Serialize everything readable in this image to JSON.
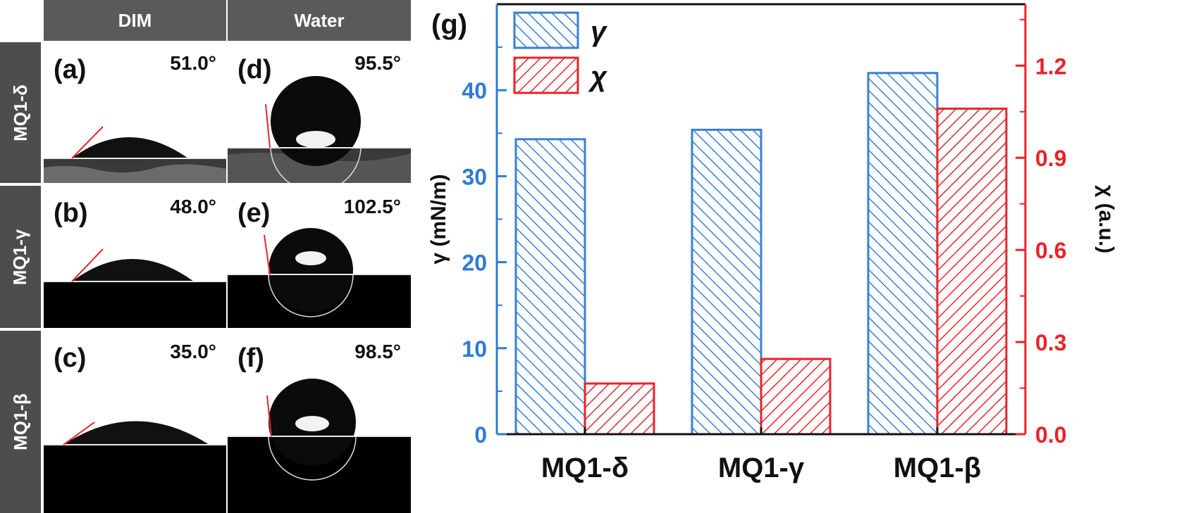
{
  "headers": {
    "col1": "DIM",
    "col2": "Water"
  },
  "row_labels": [
    "MQ1-δ",
    "MQ1-γ",
    "MQ1-β"
  ],
  "panels": [
    {
      "label": "(a)",
      "angle": "51.0°"
    },
    {
      "label": "(b)",
      "angle": "48.0°"
    },
    {
      "label": "(c)",
      "angle": "35.0°"
    },
    {
      "label": "(d)",
      "angle": "95.5°"
    },
    {
      "label": "(e)",
      "angle": "102.5°"
    },
    {
      "label": "(f)",
      "angle": "98.5°"
    }
  ],
  "chart_data": {
    "type": "bar",
    "panel_label": "(g)",
    "categories": [
      "MQ1-δ",
      "MQ1-γ",
      "MQ1-β"
    ],
    "series": [
      {
        "name": "γ",
        "axis": "left",
        "values": [
          34.3,
          35.4,
          42.0
        ]
      },
      {
        "name": "χ",
        "axis": "right",
        "values": [
          0.165,
          0.245,
          1.06
        ]
      }
    ],
    "ylabel_left": "γ (mN/m)",
    "ylabel_right": "χ (a.u.)",
    "ylim_left": [
      0,
      50
    ],
    "ylim_right": [
      0,
      1.4
    ],
    "yticks_left": [
      0,
      10,
      20,
      30,
      40
    ],
    "yticks_right": [
      "0.0",
      "0.3",
      "0.6",
      "0.9",
      "1.2"
    ],
    "legend": [
      "γ",
      "χ"
    ],
    "colors": {
      "gamma": "#3a7fd5",
      "chi": "#e8232a",
      "left_axis": "#2e7bd6",
      "right_axis": "#e8232a"
    }
  }
}
